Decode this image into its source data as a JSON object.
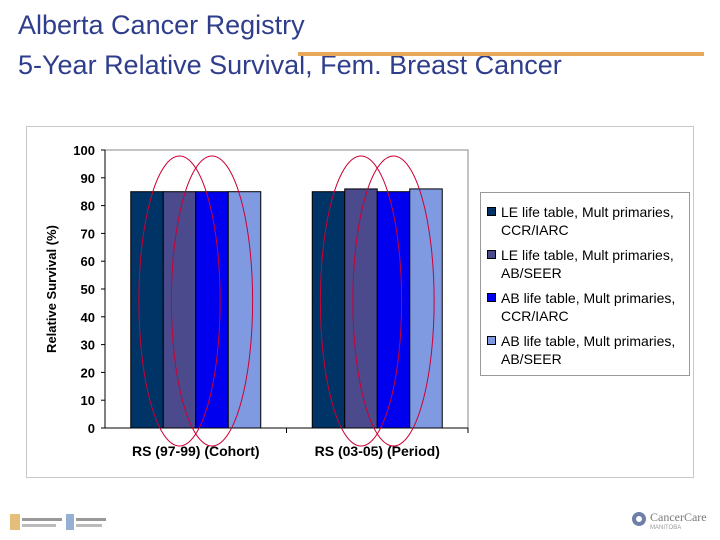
{
  "slide": {
    "title_line1": "Alberta Cancer Registry",
    "title_line2": "5-Year Relative Survival, Fem. Breast Cancer",
    "accent_color": "#e8a85a",
    "title_color": "#2f3e8c"
  },
  "chart_data": {
    "type": "bar",
    "title": "",
    "xlabel": "",
    "ylabel": "Relative Survival (%)",
    "ylim": [
      0,
      100
    ],
    "yticks": [
      0,
      10,
      20,
      30,
      40,
      50,
      60,
      70,
      80,
      90,
      100
    ],
    "grid": false,
    "plot_background": "#ffffff",
    "legend_position": "right",
    "categories": [
      "RS (97-99) (Cohort)",
      "RS (03-05) (Period)"
    ],
    "series": [
      {
        "name": "LE life table, Mult primaries, CCR/IARC",
        "color": "#003366",
        "values": [
          85,
          85
        ]
      },
      {
        "name": "LE life table, Mult primaries, AB/SEER",
        "color": "#4a4a8c",
        "values": [
          85,
          86
        ]
      },
      {
        "name": "AB life table, Mult primaries, CCR/IARC",
        "color": "#0000ee",
        "values": [
          85,
          85
        ]
      },
      {
        "name": "AB life table, Mult primaries, AB/SEER",
        "color": "#7f9ae0",
        "values": [
          85,
          86
        ]
      }
    ],
    "annotations": "Red ellipses circle the CCR/IARC pair and the AB/SEER pair of bars in each category",
    "annotation_color": "#cc0033"
  },
  "footer": {
    "left_logo_icon": "alberta-health-logo-icon",
    "right_logo_icon": "cancercare-logo-icon",
    "right_logo_text": "CancerCare",
    "right_logo_sub": "MANITOBA"
  }
}
